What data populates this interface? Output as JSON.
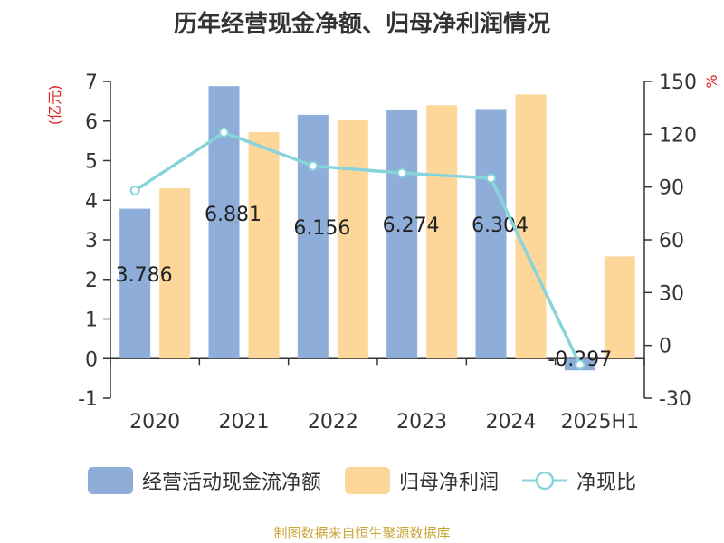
{
  "page": {
    "title": "历年经营现金净额、归母净利润情况",
    "source": "制图数据来自恒生聚源数据库"
  },
  "colors": {
    "bar1": "#8eadd9",
    "bar2": "#fdd79a",
    "line": "#88d4db",
    "axis_left_label": "#e02020",
    "text": "#333333"
  },
  "chart_data": {
    "type": "bar",
    "title": "历年经营现金净额、归母净利润情况",
    "categories": [
      "2020",
      "2021",
      "2022",
      "2023",
      "2024",
      "2025H1"
    ],
    "series": [
      {
        "name": "经营活动现金流净额",
        "type": "bar",
        "axis": "left",
        "values": [
          3.786,
          6.881,
          6.156,
          6.274,
          6.304,
          -0.297
        ],
        "labels": [
          "3.786",
          "6.881",
          "6.156",
          "6.274",
          "6.304",
          "-0.297"
        ]
      },
      {
        "name": "归母净利润",
        "type": "bar",
        "axis": "left",
        "values": [
          4.3,
          5.72,
          6.02,
          6.4,
          6.67,
          2.58
        ]
      },
      {
        "name": "净现比",
        "type": "line",
        "axis": "right",
        "values": [
          88,
          121,
          102,
          98,
          95,
          -11
        ]
      }
    ],
    "y_left": {
      "label": "(亿元)",
      "min": -1,
      "max": 7,
      "ticks": [
        -1,
        0,
        1,
        2,
        3,
        4,
        5,
        6,
        7
      ]
    },
    "y_right": {
      "label": "%",
      "min": -30,
      "max": 150,
      "ticks": [
        -30,
        0,
        30,
        60,
        90,
        120,
        150
      ]
    },
    "grid": false,
    "legend_position": "bottom"
  }
}
